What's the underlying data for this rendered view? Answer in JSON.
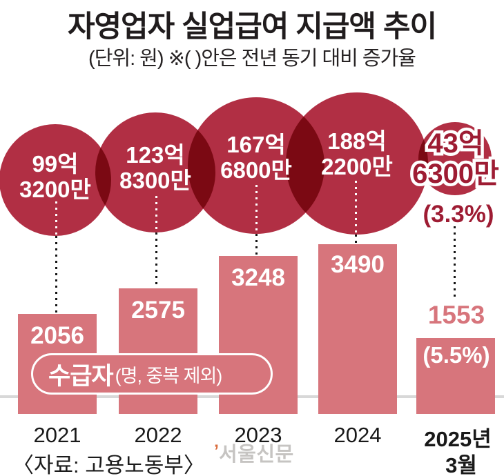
{
  "header": {
    "title": "자영업자 실업급여 지급액 추이",
    "subtitle": "(단위: 원) ※( )안은 전년 동기 대비 증가율"
  },
  "columns": [
    {
      "year": "2021",
      "amount_top": "99억",
      "amount_bottom": "3200만",
      "recipients": "2056"
    },
    {
      "year": "2022",
      "amount_top": "123억",
      "amount_bottom": "8300만",
      "recipients": "2575"
    },
    {
      "year": "2023",
      "amount_top": "167억",
      "amount_bottom": "6800만",
      "recipients": "3248"
    },
    {
      "year": "2024",
      "amount_top": "188억",
      "amount_bottom": "2200만",
      "recipients": "3490"
    },
    {
      "year": "2025년",
      "year_line2": "3월",
      "amount_top": "43억",
      "amount_bottom": "6300만",
      "amount_growth": "(3.3%)",
      "recipients": "1553",
      "recipients_growth": "(5.5%)"
    }
  ],
  "legend_box": {
    "main": "수급자",
    "sub": "(명, 중복 제외)"
  },
  "source": "〈자료: 고용노동부〉",
  "watermark": {
    "mark": "’",
    "text": "서울신문"
  },
  "colors": {
    "bubble": "#b12f44",
    "bar": "#d7757c",
    "accent_dark": "#9e1c33",
    "axis": "#d8d8d8"
  },
  "chart_data": {
    "type": "bar",
    "title": "자영업자 실업급여 지급액 추이",
    "unit": "원",
    "note": "※( )안은 전년 동기 대비 증가율",
    "categories": [
      "2021",
      "2022",
      "2023",
      "2024",
      "2025년 3월"
    ],
    "series": [
      {
        "name": "지급액",
        "type": "bubble",
        "unit": "억 원",
        "values": [
          99.32,
          123.83,
          167.68,
          188.22,
          43.63
        ],
        "labels": [
          "99억 3200만",
          "123억 8300만",
          "167억 6800만",
          "188억 2200만",
          "43억 6300만"
        ],
        "last_yoy": "(3.3%)"
      },
      {
        "name": "수급자 (명, 중복 제외)",
        "type": "bar",
        "values": [
          2056,
          2575,
          3248,
          3490,
          1553
        ],
        "last_yoy": "(5.5%)"
      }
    ],
    "grid": false,
    "legend_position": "overlay-bottom-left",
    "source": "자료: 고용노동부"
  }
}
